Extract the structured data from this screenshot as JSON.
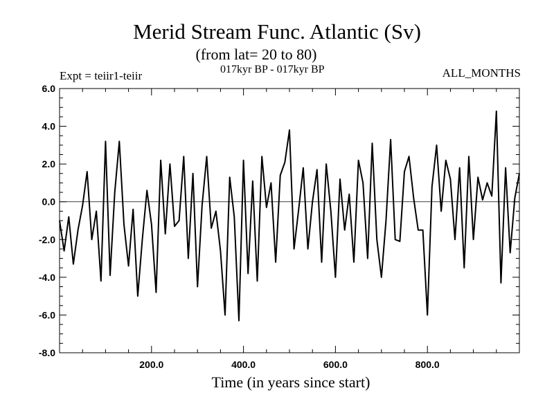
{
  "chart_data": {
    "type": "line",
    "title": "Merid Stream Func. Atlantic (Sv)",
    "subtitle": "(from lat= 20 to 80)",
    "period": "017kyr BP - 017kyr BP",
    "experiment": "Expt = teiir1-teiir",
    "months": "ALL_MONTHS",
    "xlabel": "Time (in years since start)",
    "ylabel": "",
    "xlim": [
      0,
      1000
    ],
    "ylim": [
      -8,
      6
    ],
    "xticks": [
      200,
      400,
      600,
      800
    ],
    "xtick_labels": [
      "200.0",
      "400.0",
      "600.0",
      "800.0"
    ],
    "yticks": [
      6,
      4,
      2,
      0,
      -2,
      -4,
      -6,
      -8
    ],
    "ytick_labels": [
      "6.0",
      "4.0",
      "2.0",
      "0.0",
      "-2.0",
      "-4.0",
      "-6.0",
      "-8.0"
    ],
    "zero_line": true,
    "color": "#000000",
    "series": [
      {
        "x": [
          0,
          10,
          20,
          30,
          40,
          50,
          60,
          70,
          80,
          90,
          100,
          110,
          120,
          130,
          140,
          150,
          160,
          170,
          180,
          190,
          200,
          210,
          220,
          230,
          240,
          250,
          260,
          270,
          280,
          290,
          300,
          310,
          320,
          330,
          340,
          350,
          360,
          370,
          380,
          390,
          400,
          410,
          420,
          430,
          440,
          450,
          460,
          470,
          480,
          490,
          500,
          510,
          520,
          530,
          540,
          550,
          560,
          570,
          580,
          590,
          600,
          610,
          620,
          630,
          640,
          650,
          660,
          670,
          680,
          690,
          700,
          710,
          720,
          730,
          740,
          750,
          760,
          770,
          780,
          790,
          800,
          810,
          820,
          830,
          840,
          850,
          860,
          870,
          880,
          890,
          900,
          910,
          920,
          930,
          940,
          950,
          960,
          970,
          980,
          990,
          1000
        ],
        "values": [
          -1.0,
          -2.6,
          -0.8,
          -3.3,
          -1.5,
          -0.2,
          1.6,
          -2.0,
          -0.5,
          -4.2,
          3.2,
          -3.9,
          0.5,
          3.2,
          -1.2,
          -3.4,
          -0.4,
          -5.0,
          -2.0,
          0.6,
          -1.2,
          -4.8,
          2.2,
          -1.7,
          2.0,
          -1.3,
          -1.0,
          2.4,
          -3.0,
          1.5,
          -4.5,
          -0.2,
          2.4,
          -1.4,
          -0.5,
          -2.6,
          -6.0,
          1.3,
          -0.8,
          -6.3,
          2.2,
          -3.8,
          1.1,
          -4.2,
          2.4,
          -0.3,
          1.0,
          -3.2,
          1.4,
          2.1,
          3.8,
          -2.5,
          -0.4,
          1.8,
          -2.5,
          0.0,
          1.7,
          -3.2,
          2.0,
          -0.5,
          -4.0,
          1.2,
          -1.5,
          0.4,
          -3.2,
          2.2,
          1.0,
          -3.0,
          3.1,
          -2.0,
          -4.0,
          -1.0,
          3.3,
          -2.0,
          -2.1,
          1.6,
          2.4,
          0.2,
          -1.5,
          -1.5,
          -6.0,
          0.8,
          3.0,
          -0.5,
          2.2,
          1.2,
          -2.0,
          1.8,
          -3.5,
          2.4,
          -2.0,
          1.3,
          0.1,
          1.0,
          0.3,
          4.8,
          -4.3,
          1.8,
          -2.7,
          0.2,
          1.5
        ]
      }
    ]
  }
}
